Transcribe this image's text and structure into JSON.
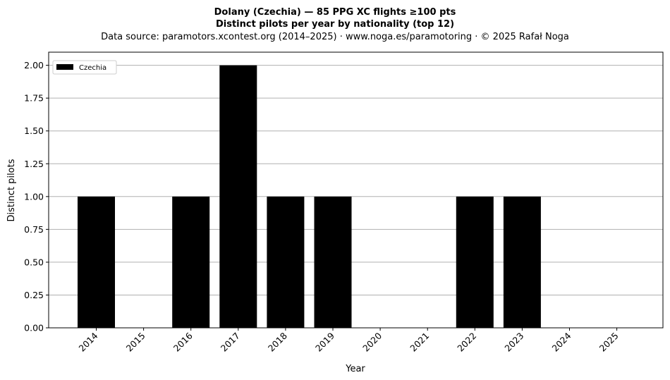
{
  "chart_data": {
    "type": "bar",
    "title": "Dolany (Czechia)  —  85 PPG XC flights ≥100 pts",
    "subtitle": "Distinct pilots per year by nationality (top 12)",
    "source": "Data source: paramotors.xcontest.org (2014–2025)  ·  www.noga.es/paramotoring  ·  © 2025 Rafał Noga",
    "xlabel": "Year",
    "ylabel": "Distinct pilots",
    "categories": [
      "2014",
      "2015",
      "2016",
      "2017",
      "2018",
      "2019",
      "2020",
      "2021",
      "2022",
      "2023",
      "2024",
      "2025"
    ],
    "series": [
      {
        "name": "Czechia",
        "values": [
          1,
          0,
          1,
          2,
          1,
          1,
          0,
          0,
          1,
          1,
          0,
          0
        ],
        "color": "#000000"
      }
    ],
    "ylim": [
      0,
      2.1
    ],
    "yticks": [
      "0.00",
      "0.25",
      "0.50",
      "0.75",
      "1.00",
      "1.25",
      "1.50",
      "1.75",
      "2.00"
    ],
    "grid": "horizontal",
    "legend_position": "top-left"
  }
}
